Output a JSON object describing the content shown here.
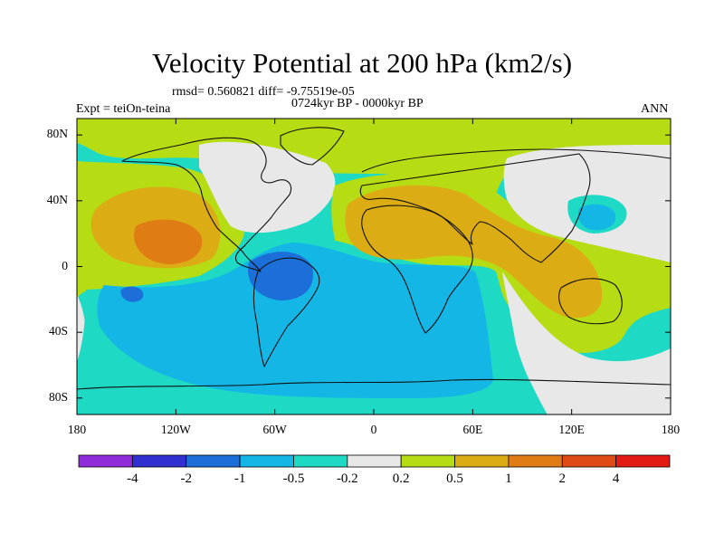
{
  "title": "Velocity Potential at 200 hPa (km2/s)",
  "stats": "rmsd= 0.560821  diff= -9.75519e-05",
  "period": "0724kyr BP - 0000kyr BP",
  "experiment": "Expt = teiOn-teina",
  "season": "ANN",
  "map": {
    "lon_range": [
      -180,
      180
    ],
    "lat_range": [
      -90,
      90
    ],
    "x_ticks": [
      {
        "lon": -180,
        "label": "180"
      },
      {
        "lon": -120,
        "label": "120W"
      },
      {
        "lon": -60,
        "label": "60W"
      },
      {
        "lon": 0,
        "label": "0"
      },
      {
        "lon": 60,
        "label": "60E"
      },
      {
        "lon": 120,
        "label": "120E"
      },
      {
        "lon": 180,
        "label": "180"
      }
    ],
    "y_ticks": [
      {
        "lat": 80,
        "label": "80N"
      },
      {
        "lat": 40,
        "label": "40N"
      },
      {
        "lat": 0,
        "label": "0"
      },
      {
        "lat": -40,
        "label": "40S"
      },
      {
        "lat": -80,
        "label": "80S"
      }
    ]
  },
  "colorbar": {
    "colors": [
      "#8f2bd9",
      "#3030d0",
      "#1c6ed8",
      "#14b6e6",
      "#1ed9c4",
      "#e8e8e8",
      "#b6dc14",
      "#dcac14",
      "#e07c14",
      "#e04a14",
      "#e41a14"
    ],
    "labels": [
      "-4",
      "-2",
      "-1",
      "-0.5",
      "-0.2",
      "0.2",
      "0.5",
      "1",
      "2",
      "4"
    ]
  },
  "field_colors": {
    "weak_neg": "#1ed9c4",
    "mod_neg": "#14b6e6",
    "strong_neg": "#1c6ed8",
    "neutral": "#e8e8e8",
    "weak_pos": "#b6dc14",
    "mod_pos": "#dcac14",
    "strong_pos": "#e07c14",
    "coast": "#111111"
  }
}
